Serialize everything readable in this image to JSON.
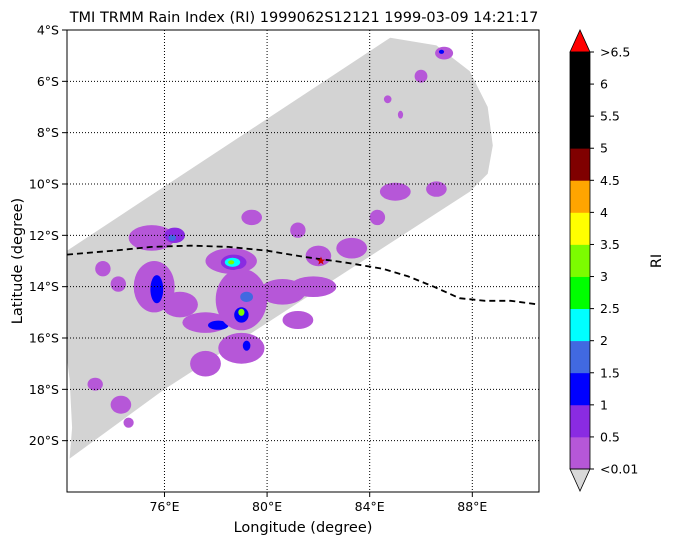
{
  "chart_data": {
    "type": "heatmap",
    "title": "TMI TRMM Rain Index (RI) 1999062S12121 1999-03-09 14:21:17",
    "xlabel": "Longitude (degree)",
    "ylabel": "Latitude (degree)",
    "xlim": [
      72.2,
      90.6
    ],
    "ylim": [
      -22.0,
      -4.0
    ],
    "x_ticks": [
      {
        "value": 76,
        "label": "76°E"
      },
      {
        "value": 80,
        "label": "80°E"
      },
      {
        "value": 84,
        "label": "84°E"
      },
      {
        "value": 88,
        "label": "88°E"
      }
    ],
    "y_ticks": [
      {
        "value": -4,
        "label": "4°S"
      },
      {
        "value": -6,
        "label": "6°S"
      },
      {
        "value": -8,
        "label": "8°S"
      },
      {
        "value": -10,
        "label": "10°S"
      },
      {
        "value": -12,
        "label": "12°S"
      },
      {
        "value": -14,
        "label": "14°S"
      },
      {
        "value": -16,
        "label": "16°S"
      },
      {
        "value": -18,
        "label": "18°S"
      },
      {
        "value": -20,
        "label": "20°S"
      }
    ],
    "grid": true,
    "swath_color": "#d3d3d3",
    "swath_outline": [
      [
        72.2,
        -12.6
      ],
      [
        84.8,
        -4.3
      ],
      [
        86.6,
        -4.6
      ],
      [
        87.9,
        -5.6
      ],
      [
        88.6,
        -7.0
      ],
      [
        88.8,
        -8.5
      ],
      [
        88.6,
        -9.6
      ],
      [
        87.9,
        -10.3
      ],
      [
        76.0,
        -18.0
      ],
      [
        72.3,
        -20.7
      ],
      [
        72.4,
        -19.5
      ],
      [
        72.3,
        -17.6
      ],
      [
        72.2,
        -16.8
      ]
    ],
    "track": {
      "color": "#000000",
      "style": "dashed",
      "lon": [
        72.2,
        74.0,
        75.5,
        77.0,
        78.5,
        80.0,
        81.5,
        83.0,
        84.5,
        85.5,
        86.5,
        87.5,
        88.5,
        89.5,
        90.6
      ],
      "lat": [
        -12.75,
        -12.6,
        -12.45,
        -12.4,
        -12.45,
        -12.6,
        -12.85,
        -13.05,
        -13.3,
        -13.6,
        -14.0,
        -14.45,
        -14.55,
        -14.55,
        -14.7
      ]
    },
    "storm_center": {
      "lon": 82.1,
      "lat": -13.0,
      "color": "#cc0000",
      "marker": "star"
    },
    "rain_cells": [
      {
        "lon": 75.5,
        "lat": -12.1,
        "rx": 0.9,
        "ry": 0.5,
        "level": 0
      },
      {
        "lon": 76.4,
        "lat": -12.0,
        "rx": 0.4,
        "ry": 0.3,
        "level": 1
      },
      {
        "lon": 76.3,
        "lat": -12.1,
        "rx": 0.15,
        "ry": 0.12,
        "level": 3
      },
      {
        "lon": 78.6,
        "lat": -13.0,
        "rx": 1.0,
        "ry": 0.5,
        "level": 0
      },
      {
        "lon": 78.7,
        "lat": -13.05,
        "rx": 0.5,
        "ry": 0.3,
        "level": 1
      },
      {
        "lon": 78.65,
        "lat": -13.05,
        "rx": 0.3,
        "ry": 0.18,
        "level": 4
      },
      {
        "lon": 78.6,
        "lat": -13.05,
        "rx": 0.12,
        "ry": 0.08,
        "level": 6
      },
      {
        "lon": 75.6,
        "lat": -14.0,
        "rx": 0.8,
        "ry": 1.0,
        "level": 0
      },
      {
        "lon": 75.7,
        "lat": -14.1,
        "rx": 0.25,
        "ry": 0.55,
        "level": 2
      },
      {
        "lon": 76.6,
        "lat": -14.7,
        "rx": 0.7,
        "ry": 0.5,
        "level": 0
      },
      {
        "lon": 77.6,
        "lat": -15.4,
        "rx": 0.9,
        "ry": 0.4,
        "level": 0
      },
      {
        "lon": 78.1,
        "lat": -15.5,
        "rx": 0.4,
        "ry": 0.18,
        "level": 2
      },
      {
        "lon": 79.0,
        "lat": -14.5,
        "rx": 1.0,
        "ry": 1.2,
        "level": 0
      },
      {
        "lon": 79.2,
        "lat": -14.4,
        "rx": 0.25,
        "ry": 0.2,
        "level": 3
      },
      {
        "lon": 79.0,
        "lat": -15.1,
        "rx": 0.28,
        "ry": 0.3,
        "level": 2
      },
      {
        "lon": 79.0,
        "lat": -15.0,
        "rx": 0.12,
        "ry": 0.14,
        "level": 6
      },
      {
        "lon": 80.6,
        "lat": -14.2,
        "rx": 0.9,
        "ry": 0.5,
        "level": 0
      },
      {
        "lon": 81.8,
        "lat": -14.0,
        "rx": 0.9,
        "ry": 0.4,
        "level": 0
      },
      {
        "lon": 82.0,
        "lat": -12.8,
        "rx": 0.5,
        "ry": 0.4,
        "level": 0
      },
      {
        "lon": 79.0,
        "lat": -16.4,
        "rx": 0.9,
        "ry": 0.6,
        "level": 0
      },
      {
        "lon": 79.2,
        "lat": -16.3,
        "rx": 0.15,
        "ry": 0.2,
        "level": 2
      },
      {
        "lon": 77.6,
        "lat": -17.0,
        "rx": 0.6,
        "ry": 0.5,
        "level": 0
      },
      {
        "lon": 73.6,
        "lat": -13.3,
        "rx": 0.3,
        "ry": 0.3,
        "level": 0
      },
      {
        "lon": 74.2,
        "lat": -13.9,
        "rx": 0.3,
        "ry": 0.3,
        "level": 0
      },
      {
        "lon": 73.3,
        "lat": -17.8,
        "rx": 0.3,
        "ry": 0.25,
        "level": 0
      },
      {
        "lon": 74.3,
        "lat": -18.6,
        "rx": 0.4,
        "ry": 0.35,
        "level": 0
      },
      {
        "lon": 74.6,
        "lat": -19.3,
        "rx": 0.2,
        "ry": 0.2,
        "level": 0
      },
      {
        "lon": 81.2,
        "lat": -15.3,
        "rx": 0.6,
        "ry": 0.35,
        "level": 0
      },
      {
        "lon": 83.3,
        "lat": -12.5,
        "rx": 0.6,
        "ry": 0.4,
        "level": 0
      },
      {
        "lon": 85.0,
        "lat": -10.3,
        "rx": 0.6,
        "ry": 0.35,
        "level": 0
      },
      {
        "lon": 84.3,
        "lat": -11.3,
        "rx": 0.3,
        "ry": 0.3,
        "level": 0
      },
      {
        "lon": 86.6,
        "lat": -10.2,
        "rx": 0.4,
        "ry": 0.3,
        "level": 0
      },
      {
        "lon": 86.9,
        "lat": -4.9,
        "rx": 0.35,
        "ry": 0.25,
        "level": 0
      },
      {
        "lon": 86.8,
        "lat": -4.85,
        "rx": 0.1,
        "ry": 0.08,
        "level": 2
      },
      {
        "lon": 86.0,
        "lat": -5.8,
        "rx": 0.25,
        "ry": 0.25,
        "level": 0
      },
      {
        "lon": 84.7,
        "lat": -6.7,
        "rx": 0.15,
        "ry": 0.15,
        "level": 0
      },
      {
        "lon": 85.2,
        "lat": -7.3,
        "rx": 0.1,
        "ry": 0.15,
        "level": 0
      },
      {
        "lon": 79.4,
        "lat": -11.3,
        "rx": 0.4,
        "ry": 0.3,
        "level": 0
      },
      {
        "lon": 81.2,
        "lat": -11.8,
        "rx": 0.3,
        "ry": 0.3,
        "level": 0
      }
    ],
    "colorbar": {
      "label": "RI",
      "tick_labels": [
        "<0.01",
        "0.5",
        "1",
        "1.5",
        "2",
        "2.5",
        "3",
        "3.5",
        "4",
        "4.5",
        "5",
        "5.5",
        "6",
        ">6.5"
      ],
      "levels": [
        {
          "color": "#b657d8"
        },
        {
          "color": "#8a2be2"
        },
        {
          "color": "#0000ff"
        },
        {
          "color": "#4169e1"
        },
        {
          "color": "#00ffff"
        },
        {
          "color": "#00ff00"
        },
        {
          "color": "#7cfc00"
        },
        {
          "color": "#ffff00"
        },
        {
          "color": "#ffa500"
        },
        {
          "color": "#800000"
        },
        {
          "color": "#000000"
        },
        {
          "color": "#000000"
        },
        {
          "color": "#000000"
        }
      ],
      "under_color": "#d9d9d9",
      "over_color": "#ff0000"
    }
  }
}
